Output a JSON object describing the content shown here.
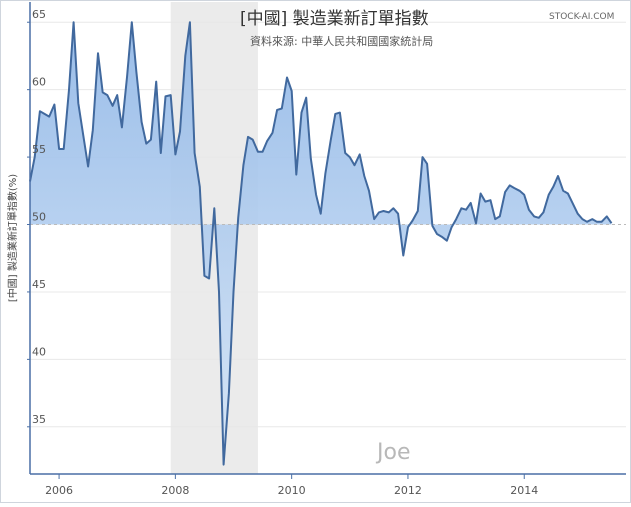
{
  "chart_data": {
    "type": "area",
    "title": "[中國] 製造業新訂單指數",
    "subtitle": "資料來源: 中華人民共和國國家統計局",
    "brand": "STOCK-AI.COM",
    "watermark": "Joe",
    "ylabel": "[中國] 製造業新訂單指數(%)",
    "xlabel": "",
    "baseline": 50,
    "ylim": [
      31.5,
      66.5
    ],
    "xlim": [
      2005.5,
      2015.75
    ],
    "yticks": [
      35,
      40,
      45,
      50,
      55,
      60,
      65
    ],
    "xticks": [
      2006,
      2008,
      2010,
      2012,
      2014
    ],
    "shaded_range": [
      2007.92,
      2009.42
    ],
    "grid": true,
    "legend": "none",
    "colors": {
      "line": "#41699e",
      "fill_top": "#8fb6e6",
      "fill_bottom": "#d6e6f8",
      "axis": "#4a6fa5",
      "shade": "#ebebeb",
      "grid": "#e8e8e8",
      "baseline": "#bbbbbb"
    },
    "series": [
      {
        "x": [
          2005.5,
          2005.58,
          2005.67,
          2005.75,
          2005.83,
          2005.92,
          2006.0,
          2006.08,
          2006.17,
          2006.25,
          2006.33,
          2006.42,
          2006.5,
          2006.58,
          2006.67,
          2006.75,
          2006.83,
          2006.92,
          2007.0,
          2007.08,
          2007.17,
          2007.25,
          2007.33,
          2007.42,
          2007.5,
          2007.58,
          2007.67,
          2007.75,
          2007.83,
          2007.92,
          2008.0,
          2008.08,
          2008.17,
          2008.25,
          2008.33,
          2008.42,
          2008.5,
          2008.58,
          2008.67,
          2008.75,
          2008.83,
          2008.92,
          2009.0,
          2009.08,
          2009.17,
          2009.25,
          2009.33,
          2009.42,
          2009.5,
          2009.58,
          2009.67,
          2009.75,
          2009.83,
          2009.92,
          2010.0,
          2010.08,
          2010.17,
          2010.25,
          2010.33,
          2010.42,
          2010.5,
          2010.58,
          2010.67,
          2010.75,
          2010.83,
          2010.92,
          2011.0,
          2011.08,
          2011.17,
          2011.25,
          2011.33,
          2011.42,
          2011.5,
          2011.58,
          2011.67,
          2011.75,
          2011.83,
          2011.92,
          2012.0,
          2012.08,
          2012.17,
          2012.25,
          2012.33,
          2012.42,
          2012.5,
          2012.58,
          2012.67,
          2012.75,
          2012.83,
          2012.92,
          2013.0,
          2013.08,
          2013.17,
          2013.25,
          2013.33,
          2013.42,
          2013.5,
          2013.58,
          2013.67,
          2013.75,
          2013.83,
          2013.92,
          2014.0,
          2014.08,
          2014.17,
          2014.25,
          2014.33,
          2014.42,
          2014.5,
          2014.58,
          2014.67,
          2014.75,
          2014.83,
          2014.92,
          2015.0,
          2015.08,
          2015.17,
          2015.25,
          2015.33,
          2015.42,
          2015.5
        ],
        "values": [
          53.2,
          55.0,
          58.4,
          58.2,
          58.0,
          58.9,
          55.6,
          55.6,
          60.0,
          65.0,
          59.0,
          56.5,
          54.3,
          57.0,
          62.7,
          59.8,
          59.6,
          58.8,
          59.6,
          57.2,
          61.0,
          65.0,
          61.3,
          57.6,
          56.0,
          56.3,
          60.6,
          55.3,
          59.5,
          59.6,
          55.2,
          56.9,
          62.5,
          65.0,
          55.3,
          52.8,
          46.2,
          46.0,
          51.2,
          45.0,
          32.2,
          37.5,
          45.0,
          50.5,
          54.4,
          56.5,
          56.3,
          55.4,
          55.4,
          56.2,
          56.8,
          58.5,
          58.6,
          60.9,
          59.9,
          53.7,
          58.3,
          59.4,
          54.9,
          52.2,
          50.8,
          53.8,
          56.2,
          58.2,
          58.3,
          55.3,
          55.0,
          54.4,
          55.2,
          53.6,
          52.5,
          50.4,
          50.9,
          51.0,
          50.9,
          51.2,
          50.8,
          47.7,
          49.8,
          50.3,
          51.0,
          55.0,
          54.5,
          49.9,
          49.3,
          49.1,
          48.8,
          49.8,
          50.4,
          51.2,
          51.1,
          51.6,
          50.1,
          52.3,
          51.7,
          51.8,
          50.4,
          50.6,
          52.4,
          52.9,
          52.7,
          52.5,
          52.2,
          51.1,
          50.6,
          50.5,
          50.9,
          52.2,
          52.8,
          53.6,
          52.5,
          52.3,
          51.6,
          50.8,
          50.4,
          50.2,
          50.4,
          50.2,
          50.2,
          50.6,
          50.1
        ]
      }
    ]
  }
}
